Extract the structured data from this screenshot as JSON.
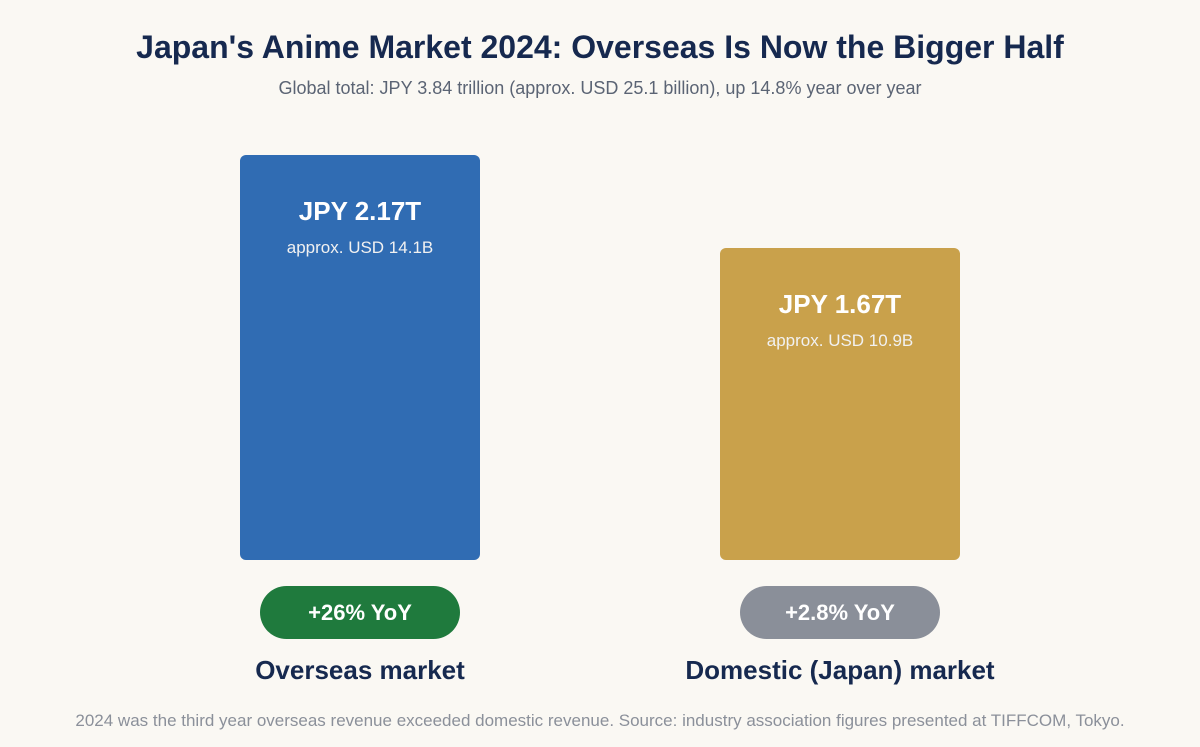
{
  "chart_data": {
    "type": "bar",
    "title": "Japan's Anime Market 2024: Overseas Is Now the Bigger Half",
    "subtitle": "Global total: JPY 3.84 trillion (approx. USD 25.1 billion), up 14.8% year over year",
    "categories": [
      "Overseas market",
      "Domestic (Japan) market"
    ],
    "values": [
      2.17,
      1.67
    ],
    "value_labels": [
      "JPY 2.17T",
      "JPY 1.67T"
    ],
    "usd_labels": [
      "approx. USD 14.1B",
      "approx. USD 10.9B"
    ],
    "growth_labels": [
      "+26% YoY",
      "+2.8% YoY"
    ],
    "colors": [
      "#306cb3",
      "#c9a14b"
    ],
    "growth_colors": [
      "#1f7a3d",
      "#8a8f99"
    ],
    "ylim": [
      0,
      2.17
    ],
    "grid": false,
    "footnote": "2024 was the third year overseas revenue exceeded domestic revenue. Source: industry association figures presented at TIFFCOM, Tokyo."
  }
}
